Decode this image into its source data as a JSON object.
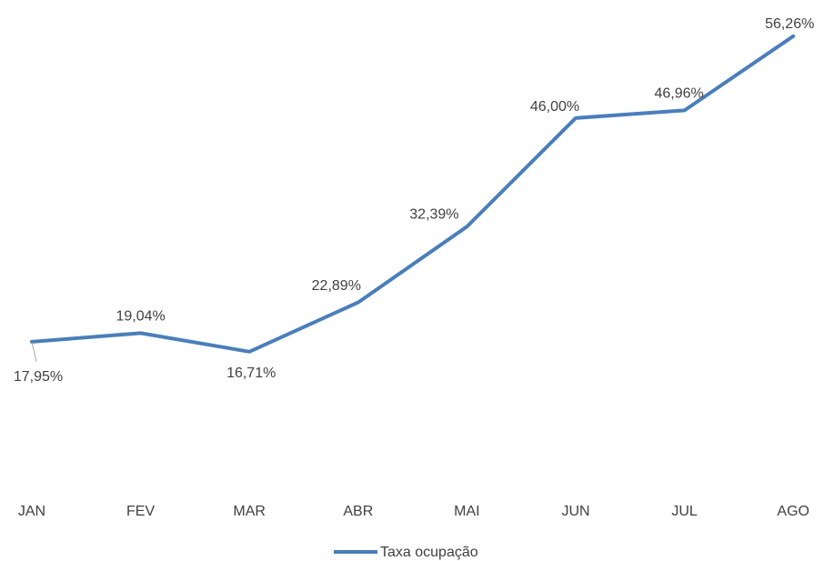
{
  "chart_data": {
    "type": "line",
    "categories": [
      "JAN",
      "FEV",
      "MAR",
      "ABR",
      "MAI",
      "JUN",
      "JUL",
      "AGO"
    ],
    "series": [
      {
        "name": "Taxa ocupação",
        "color": "#4a7ebb",
        "values": [
          17.95,
          19.04,
          16.71,
          22.89,
          32.39,
          46.0,
          46.96,
          56.26
        ],
        "value_labels": [
          "17,95%",
          "19,04%",
          "16,71%",
          "22,89%",
          "32,39%",
          "46,00%",
          "46,96%",
          "56,26%"
        ]
      }
    ],
    "ylim": [
      0,
      60
    ],
    "grid": false,
    "legend": "bottom"
  }
}
